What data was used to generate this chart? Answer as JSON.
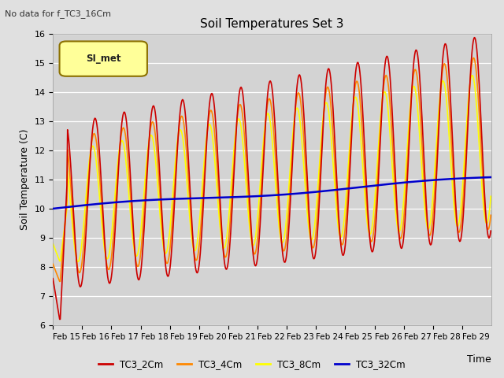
{
  "title": "Soil Temperatures Set 3",
  "subtitle": "No data for f_TC3_16Cm",
  "xlabel": "Time",
  "ylabel": "Soil Temperature (C)",
  "ylim": [
    6.0,
    16.0
  ],
  "yticks": [
    6.0,
    7.0,
    8.0,
    9.0,
    10.0,
    11.0,
    12.0,
    13.0,
    14.0,
    15.0,
    16.0
  ],
  "xtick_labels": [
    "Feb 15",
    "Feb 16",
    "Feb 17",
    "Feb 18",
    "Feb 19",
    "Feb 20",
    "Feb 21",
    "Feb 22",
    "Feb 23",
    "Feb 24",
    "Feb 25",
    "Feb 26",
    "Feb 27",
    "Feb 28",
    "Feb 29"
  ],
  "colors": {
    "TC3_2Cm": "#cc0000",
    "TC3_4Cm": "#ff8800",
    "TC3_8Cm": "#ffff00",
    "TC3_32Cm": "#0000cc"
  },
  "fig_bg": "#e0e0e0",
  "plot_bg": "#d3d3d3",
  "legend_label": "SI_met",
  "legend_bg": "#ffff99",
  "legend_border": "#8b7000"
}
